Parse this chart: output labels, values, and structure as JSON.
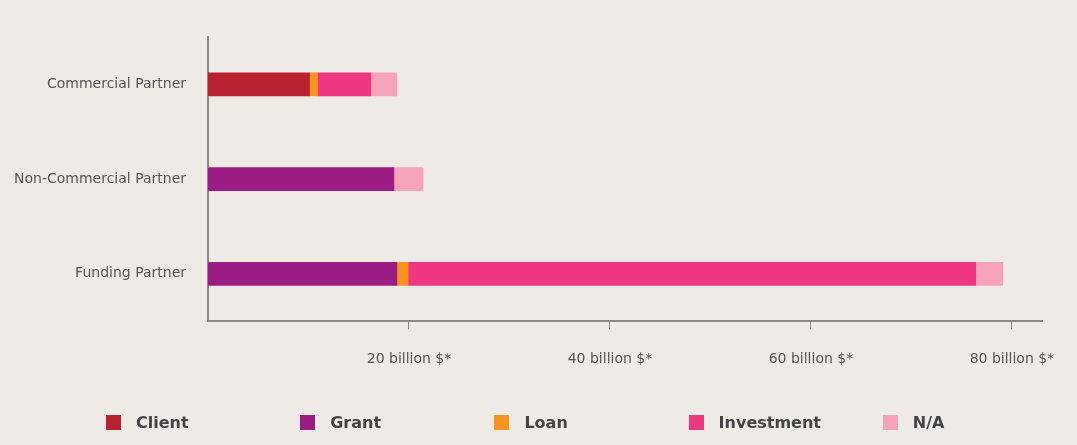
{
  "chart_data": {
    "type": "bar",
    "orientation": "horizontal",
    "stacked": true,
    "categories": [
      "Commercial Partner",
      "Non-Commercial Partner",
      "Funding Partner"
    ],
    "series": [
      {
        "name": "Client",
        "color": "#b8212f",
        "values": [
          10.1,
          null,
          null
        ]
      },
      {
        "name": "Grant",
        "color": "#9b1c85",
        "values": [
          null,
          18.5,
          18.8
        ]
      },
      {
        "name": "Loan",
        "color": "#f7941d",
        "values": [
          0.8,
          null,
          1.1
        ]
      },
      {
        "name": "Investment",
        "color": "#ee3681",
        "values": [
          5.3,
          null,
          56.5
        ]
      },
      {
        "name": "N/A",
        "color": "#f5a3b8",
        "values": [
          2.6,
          2.9,
          2.7
        ]
      }
    ],
    "xlim": [
      0,
      83
    ],
    "xticks": [
      {
        "value": 20,
        "label": "20 billion $*"
      },
      {
        "value": 40,
        "label": "40 billion $*"
      },
      {
        "value": 60,
        "label": "60 billion $*"
      },
      {
        "value": 80,
        "label": "80 billion $*"
      }
    ],
    "grid": false,
    "legend": "bottom"
  }
}
